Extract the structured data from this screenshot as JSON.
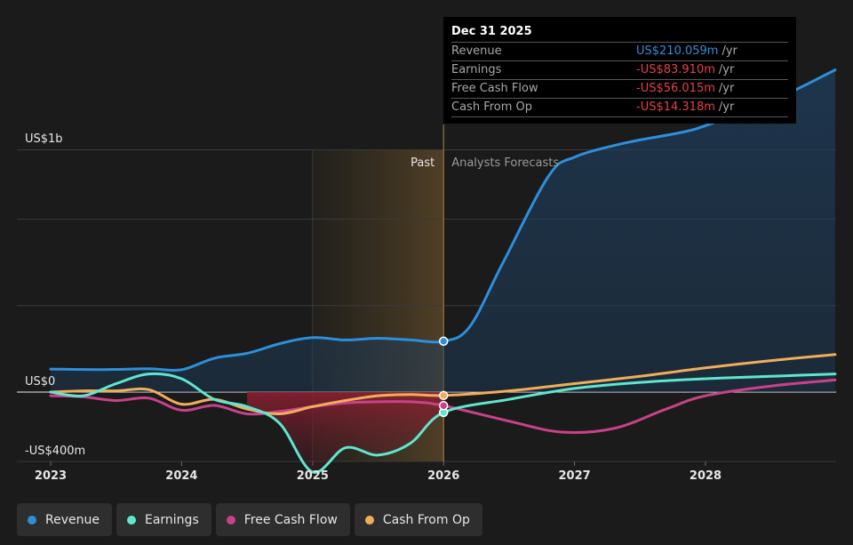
{
  "tooltip": {
    "date": "Dec 31 2025",
    "rows": [
      {
        "label": "Revenue",
        "value": "US$210.059m",
        "unit": "/yr",
        "sign": "pos"
      },
      {
        "label": "Earnings",
        "value": "-US$83.910m",
        "unit": "/yr",
        "sign": "neg"
      },
      {
        "label": "Free Cash Flow",
        "value": "-US$56.015m",
        "unit": "/yr",
        "sign": "neg"
      },
      {
        "label": "Cash From Op",
        "value": "-US$14.318m",
        "unit": "/yr",
        "sign": "neg"
      }
    ]
  },
  "colors": {
    "background": "#1b1b1b",
    "revenue": "#2d8fdc",
    "earnings": "#5ee6cf",
    "fcf": "#c84289",
    "cfo": "#f0ad5a",
    "past_band": "#4a3d24",
    "negative_fill": "#7a2030"
  },
  "chart_data": {
    "type": "line",
    "y_tick_labels": [
      "US$1b",
      "US$0",
      "-US$400m"
    ],
    "x_tick_labels": [
      "2023",
      "2024",
      "2025",
      "2026",
      "2027",
      "2028"
    ],
    "ylim": [
      -400,
      1400
    ],
    "xlim": [
      2023.0,
      2028.99
    ],
    "divider_x": 2026.0,
    "past_band_start": 2025.0,
    "past_label": "Past",
    "forecast_label": "Analysts Forecasts",
    "grid": true,
    "legend_placement": "bottom",
    "series": [
      {
        "name": "Revenue",
        "color_key": "revenue",
        "points": [
          [
            2023.0,
            95
          ],
          [
            2023.4,
            93
          ],
          [
            2023.75,
            96
          ],
          [
            2024.0,
            92
          ],
          [
            2024.25,
            140
          ],
          [
            2024.5,
            160
          ],
          [
            2024.75,
            200
          ],
          [
            2025.0,
            225
          ],
          [
            2025.25,
            215
          ],
          [
            2025.5,
            222
          ],
          [
            2025.75,
            215
          ],
          [
            2026.0,
            210
          ],
          [
            2026.2,
            270
          ],
          [
            2026.45,
            530
          ],
          [
            2026.8,
            890
          ],
          [
            2027.0,
            970
          ],
          [
            2027.4,
            1030
          ],
          [
            2027.8,
            1070
          ],
          [
            2028.0,
            1100
          ],
          [
            2028.5,
            1200
          ],
          [
            2028.99,
            1330
          ]
        ]
      },
      {
        "name": "Earnings",
        "color_key": "earnings",
        "points": [
          [
            2023.0,
            0
          ],
          [
            2023.25,
            -15
          ],
          [
            2023.5,
            35
          ],
          [
            2023.75,
            75
          ],
          [
            2024.0,
            55
          ],
          [
            2024.25,
            -30
          ],
          [
            2024.5,
            -60
          ],
          [
            2024.75,
            -130
          ],
          [
            2025.0,
            -330
          ],
          [
            2025.25,
            -230
          ],
          [
            2025.5,
            -260
          ],
          [
            2025.75,
            -210
          ],
          [
            2026.0,
            -84
          ],
          [
            2026.5,
            -30
          ],
          [
            2027.0,
            15
          ],
          [
            2027.5,
            40
          ],
          [
            2028.0,
            55
          ],
          [
            2028.5,
            65
          ],
          [
            2028.99,
            75
          ]
        ]
      },
      {
        "name": "Free Cash Flow",
        "color_key": "fcf",
        "points": [
          [
            2023.0,
            -15
          ],
          [
            2023.25,
            -20
          ],
          [
            2023.5,
            -35
          ],
          [
            2023.75,
            -25
          ],
          [
            2024.0,
            -75
          ],
          [
            2024.25,
            -55
          ],
          [
            2024.5,
            -90
          ],
          [
            2024.75,
            -80
          ],
          [
            2025.0,
            -60
          ],
          [
            2025.25,
            -45
          ],
          [
            2025.5,
            -40
          ],
          [
            2025.75,
            -40
          ],
          [
            2026.0,
            -56
          ],
          [
            2026.5,
            -120
          ],
          [
            2026.9,
            -165
          ],
          [
            2027.3,
            -150
          ],
          [
            2027.7,
            -70
          ],
          [
            2028.0,
            -15
          ],
          [
            2028.5,
            25
          ],
          [
            2028.99,
            50
          ]
        ]
      },
      {
        "name": "Cash From Op",
        "color_key": "cfo",
        "points": [
          [
            2023.0,
            0
          ],
          [
            2023.25,
            5
          ],
          [
            2023.5,
            5
          ],
          [
            2023.75,
            10
          ],
          [
            2024.0,
            -50
          ],
          [
            2024.25,
            -30
          ],
          [
            2024.5,
            -70
          ],
          [
            2024.75,
            -90
          ],
          [
            2025.0,
            -60
          ],
          [
            2025.25,
            -35
          ],
          [
            2025.5,
            -15
          ],
          [
            2025.75,
            -10
          ],
          [
            2026.0,
            -14
          ],
          [
            2026.5,
            5
          ],
          [
            2027.0,
            35
          ],
          [
            2027.5,
            65
          ],
          [
            2028.0,
            100
          ],
          [
            2028.5,
            130
          ],
          [
            2028.99,
            155
          ]
        ]
      }
    ]
  },
  "legend": [
    {
      "label": "Revenue",
      "color_key": "revenue"
    },
    {
      "label": "Earnings",
      "color_key": "earnings"
    },
    {
      "label": "Free Cash Flow",
      "color_key": "fcf"
    },
    {
      "label": "Cash From Op",
      "color_key": "cfo"
    }
  ]
}
